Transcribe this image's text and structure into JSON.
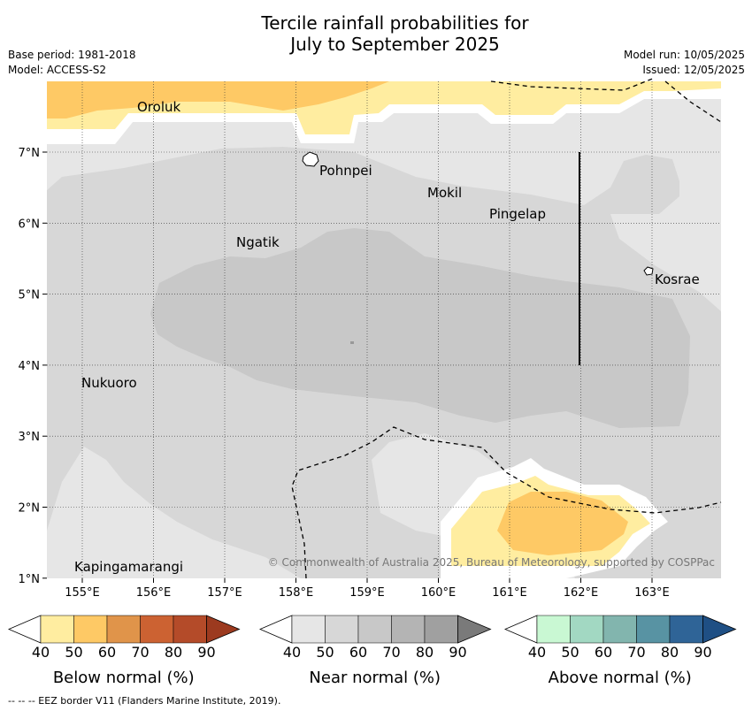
{
  "title_line1": "Tercile rainfall probabilities for",
  "title_line2": "July to September 2025",
  "base_period": "Base period: 1981-2018",
  "model": "Model: ACCESS-S2",
  "model_run": "Model run: 10/05/2025",
  "issued": "Issued: 12/05/2025",
  "map": {
    "lon_ticks": [
      "155°E",
      "156°E",
      "157°E",
      "158°E",
      "159°E",
      "160°E",
      "161°E",
      "162°E",
      "163°E"
    ],
    "lat_ticks": [
      "7°N",
      "6°N",
      "5°N",
      "4°N",
      "3°N",
      "2°N",
      "1°N"
    ],
    "places": [
      "Oroluk",
      "Pohnpei",
      "Mokil",
      "Pingelap",
      "Ngatik",
      "Kosrae",
      "Nukuoro",
      "Kapingamarangi"
    ],
    "copyright": "© Commonwealth of Australia 2025, Bureau of Meteorology, supported by COSPPac"
  },
  "legends": [
    {
      "label": "Below normal (%)",
      "ticks": [
        "40",
        "50",
        "60",
        "70",
        "80",
        "90"
      ],
      "colors": [
        "#ffeda0",
        "#fec965",
        "#e0944a",
        "#cc6232",
        "#b44b29",
        "#9c3a1f"
      ]
    },
    {
      "label": "Near normal (%)",
      "ticks": [
        "40",
        "50",
        "60",
        "70",
        "80",
        "90"
      ],
      "colors": [
        "#e6e6e6",
        "#d7d7d7",
        "#c8c8c8",
        "#b4b4b4",
        "#a0a0a0",
        "#7a7a7a"
      ]
    },
    {
      "label": "Above normal (%)",
      "ticks": [
        "40",
        "50",
        "60",
        "70",
        "80",
        "90"
      ],
      "colors": [
        "#c9f8d3",
        "#a2d8c2",
        "#82b5ae",
        "#5893a3",
        "#2f6497",
        "#1f4f84"
      ]
    }
  ],
  "footnote": "--  --  -- EEZ border V11 (Flanders Marine Institute, 2019)."
}
